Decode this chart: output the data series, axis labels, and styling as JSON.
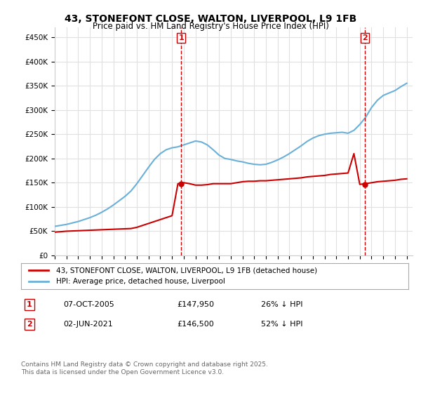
{
  "title": "43, STONEFONT CLOSE, WALTON, LIVERPOOL, L9 1FB",
  "subtitle": "Price paid vs. HM Land Registry's House Price Index (HPI)",
  "ylabel": "",
  "ylim": [
    0,
    470000
  ],
  "yticks": [
    0,
    50000,
    100000,
    150000,
    200000,
    250000,
    300000,
    350000,
    400000,
    450000
  ],
  "xlim_start": 1995.0,
  "xlim_end": 2025.5,
  "background_color": "#ffffff",
  "grid_color": "#e0e0e0",
  "hpi_color": "#6ab0d8",
  "price_color": "#cc0000",
  "vline_color": "#cc0000",
  "marker1_x": 2005.77,
  "marker1_y": 147950,
  "marker2_x": 2021.42,
  "marker2_y": 146500,
  "legend_price_label": "43, STONEFONT CLOSE, WALTON, LIVERPOOL, L9 1FB (detached house)",
  "legend_hpi_label": "HPI: Average price, detached house, Liverpool",
  "annotation1_num": "1",
  "annotation2_num": "2",
  "table_row1": [
    "1",
    "07-OCT-2005",
    "£147,950",
    "26% ↓ HPI"
  ],
  "table_row2": [
    "2",
    "02-JUN-2021",
    "£146,500",
    "52% ↓ HPI"
  ],
  "footnote": "Contains HM Land Registry data © Crown copyright and database right 2025.\nThis data is licensed under the Open Government Licence v3.0.",
  "hpi_x": [
    1995.0,
    1995.5,
    1996.0,
    1996.5,
    1997.0,
    1997.5,
    1998.0,
    1998.5,
    1999.0,
    1999.5,
    2000.0,
    2000.5,
    2001.0,
    2001.5,
    2002.0,
    2002.5,
    2003.0,
    2003.5,
    2004.0,
    2004.5,
    2005.0,
    2005.5,
    2006.0,
    2006.5,
    2007.0,
    2007.5,
    2008.0,
    2008.5,
    2009.0,
    2009.5,
    2010.0,
    2010.5,
    2011.0,
    2011.5,
    2012.0,
    2012.5,
    2013.0,
    2013.5,
    2014.0,
    2014.5,
    2015.0,
    2015.5,
    2016.0,
    2016.5,
    2017.0,
    2017.5,
    2018.0,
    2018.5,
    2019.0,
    2019.5,
    2020.0,
    2020.5,
    2021.0,
    2021.5,
    2022.0,
    2022.5,
    2023.0,
    2023.5,
    2024.0,
    2024.5,
    2025.0
  ],
  "hpi_y": [
    60000,
    62000,
    64000,
    67000,
    70000,
    74000,
    78000,
    83000,
    89000,
    96000,
    104000,
    113000,
    122000,
    133000,
    148000,
    165000,
    182000,
    198000,
    210000,
    218000,
    222000,
    224000,
    228000,
    232000,
    236000,
    234000,
    228000,
    218000,
    207000,
    200000,
    198000,
    195000,
    193000,
    190000,
    188000,
    187000,
    188000,
    192000,
    197000,
    203000,
    210000,
    218000,
    226000,
    235000,
    242000,
    247000,
    250000,
    252000,
    253000,
    254000,
    252000,
    258000,
    270000,
    285000,
    305000,
    320000,
    330000,
    335000,
    340000,
    348000,
    355000
  ],
  "price_x": [
    1995.0,
    1995.5,
    1996.0,
    1996.5,
    1997.0,
    1997.5,
    1998.0,
    1998.5,
    1999.0,
    1999.5,
    2000.0,
    2000.5,
    2001.0,
    2001.5,
    2002.0,
    2002.5,
    2003.0,
    2003.5,
    2004.0,
    2004.5,
    2005.0,
    2005.5,
    2006.0,
    2006.5,
    2007.0,
    2007.5,
    2008.0,
    2008.5,
    2009.0,
    2009.5,
    2010.0,
    2010.5,
    2011.0,
    2011.5,
    2012.0,
    2012.5,
    2013.0,
    2013.5,
    2014.0,
    2014.5,
    2015.0,
    2015.5,
    2016.0,
    2016.5,
    2017.0,
    2017.5,
    2018.0,
    2018.5,
    2019.0,
    2019.5,
    2020.0,
    2020.5,
    2021.0,
    2021.5,
    2022.0,
    2022.5,
    2023.0,
    2023.5,
    2024.0,
    2024.5,
    2025.0
  ],
  "price_y": [
    48000,
    49000,
    50000,
    50500,
    51000,
    51500,
    52000,
    52500,
    53000,
    53500,
    54000,
    54500,
    55000,
    55500,
    58000,
    62000,
    66000,
    70000,
    74000,
    78000,
    82000,
    148000,
    150000,
    148000,
    145000,
    145000,
    146000,
    148000,
    148000,
    148000,
    148000,
    150000,
    152000,
    153000,
    153000,
    154000,
    154000,
    155000,
    156000,
    157000,
    158000,
    159000,
    160000,
    162000,
    163000,
    164000,
    165000,
    167000,
    168000,
    169000,
    170000,
    210000,
    146500,
    148000,
    150000,
    152000,
    153000,
    154000,
    155000,
    157000,
    158000
  ]
}
